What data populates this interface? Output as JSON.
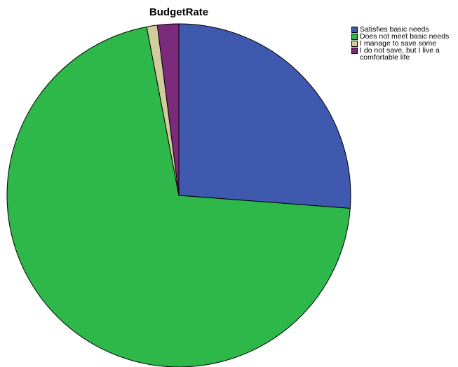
{
  "chart_data": {
    "type": "pie",
    "title": "BudgetRate",
    "categories": [
      "Satisfies basic needs",
      "Does not meet basic needs",
      "I manage to save some",
      "I do not save, but I live a comfortable life"
    ],
    "values": [
      26.2,
      70.8,
      1.0,
      2.0
    ],
    "colors": [
      "#3e59ae",
      "#2eb84a",
      "#d2cc9c",
      "#7b2a7c"
    ],
    "start_angle_deg": 0,
    "direction": "clockwise",
    "legend_position": "top-right"
  }
}
